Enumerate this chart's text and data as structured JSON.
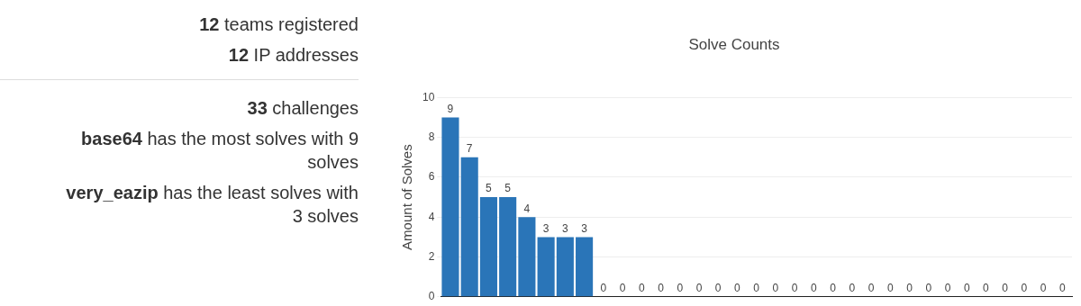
{
  "chart_data": [
    {
      "type": "other",
      "annotations": [
        "12 teams registered",
        "12 IP addresses",
        "33 challenges",
        "base64 has the most solves with 9 solves",
        "very_eazip has the least solves with 3 solves"
      ]
    },
    {
      "type": "bar",
      "title": "Solve Counts",
      "ylabel": "Amount of Solves",
      "color": "#2a75b8",
      "categories": [
        null,
        null,
        null,
        null,
        null,
        null,
        null,
        null,
        null,
        null,
        null,
        null,
        null,
        null,
        null,
        null,
        null,
        null,
        null,
        null,
        null,
        null,
        null,
        null,
        null,
        null,
        null,
        null,
        null,
        null,
        null,
        null,
        null
      ],
      "values": [
        9,
        7,
        5,
        5,
        4,
        3,
        3,
        3,
        0,
        0,
        0,
        0,
        0,
        0,
        0,
        0,
        0,
        0,
        0,
        0,
        0,
        0,
        0,
        0,
        0,
        0,
        0,
        0,
        0,
        0,
        0,
        0,
        0
      ],
      "ylim": [
        0,
        10
      ],
      "yticks": [
        0,
        2,
        4,
        6,
        8,
        10
      ],
      "grid": "y",
      "tick_labels": "y",
      "data_labels": true,
      "legend": false
    }
  ]
}
